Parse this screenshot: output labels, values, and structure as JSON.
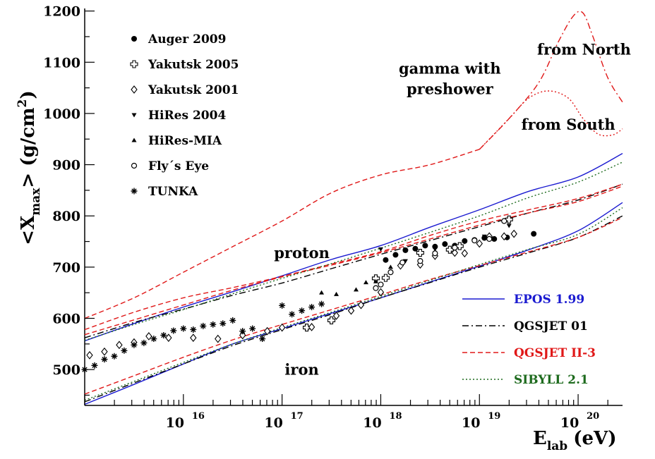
{
  "chart_data": {
    "type": "line",
    "title": "",
    "xlabel": {
      "main": "E",
      "sub": "lab",
      "unit": "(eV)"
    },
    "ylabel": {
      "open": "<X",
      "sub": "max",
      "mid": "> (g/cm",
      "sup": "2",
      "close": ")"
    },
    "xscale": "log10",
    "xlim": [
      15.0,
      20.45
    ],
    "ylim": [
      430,
      1205
    ],
    "yticks": [
      500,
      600,
      700,
      800,
      900,
      1000,
      1100,
      1200
    ],
    "xticks": [
      {
        "pos": 16,
        "base": "10",
        "exp": "16"
      },
      {
        "pos": 17,
        "base": "10",
        "exp": "17"
      },
      {
        "pos": 18,
        "base": "10",
        "exp": "18"
      },
      {
        "pos": 19,
        "base": "10",
        "exp": "19"
      },
      {
        "pos": 20,
        "base": "10",
        "exp": "20"
      }
    ],
    "legend_data": {
      "position": "top-left",
      "entries": [
        {
          "label": "Auger 2009",
          "marker": "filled-circle"
        },
        {
          "label": "Yakutsk 2005",
          "marker": "open-cross"
        },
        {
          "label": "Yakutsk 2001",
          "marker": "open-diamond"
        },
        {
          "label": "HiRes 2004",
          "marker": "down-triangle"
        },
        {
          "label": "HiRes-MIA",
          "marker": "up-triangle"
        },
        {
          "label": "Fly´s Eye",
          "marker": "open-circle"
        },
        {
          "label": "TUNKA",
          "marker": "star"
        }
      ]
    },
    "legend_models": {
      "position": "bottom-right",
      "entries": [
        {
          "label": "EPOS 1.99",
          "color": "#1a1ad0",
          "dash": "solid"
        },
        {
          "label": "QGSJET 01",
          "color": "#000000",
          "dash": "dashdot"
        },
        {
          "label": "QGSJET II-3",
          "color": "#e01818",
          "dash": "dashed"
        },
        {
          "label": "SIBYLL 2.1",
          "color": "#1e6b1e",
          "dash": "dotted"
        }
      ]
    },
    "annotations": [
      {
        "text": "gamma with",
        "x": 18.7,
        "y": 1078
      },
      {
        "text": "preshower",
        "x": 18.7,
        "y": 1038
      },
      {
        "text": "from North",
        "x": 20.06,
        "y": 1115
      },
      {
        "text": "from South",
        "x": 19.9,
        "y": 968
      },
      {
        "text": "proton",
        "x": 17.2,
        "y": 718
      },
      {
        "text": "iron",
        "x": 17.2,
        "y": 490
      }
    ],
    "series": [
      {
        "name": "EPOS proton",
        "model": "EPOS 1.99",
        "color": "#1a1ad0",
        "dash": "solid",
        "x": [
          15.0,
          15.5,
          16.0,
          16.5,
          17.0,
          17.5,
          18.0,
          18.5,
          19.0,
          19.5,
          20.0,
          20.45
        ],
        "y": [
          556,
          590,
          622,
          652,
          683,
          715,
          742,
          778,
          812,
          848,
          876,
          922
        ]
      },
      {
        "name": "EPOS iron",
        "model": "EPOS 1.99",
        "color": "#1a1ad0",
        "dash": "solid",
        "x": [
          15.0,
          15.5,
          16.0,
          16.5,
          17.0,
          17.5,
          18.0,
          18.5,
          19.0,
          19.5,
          20.0,
          20.45
        ],
        "y": [
          432,
          471,
          511,
          550,
          580,
          610,
          640,
          671,
          702,
          734,
          771,
          826
        ]
      },
      {
        "name": "QGSJET 01 proton",
        "model": "QGSJET 01",
        "color": "#000000",
        "dash": "dashdot",
        "x": [
          15.0,
          15.5,
          16.0,
          16.5,
          17.0,
          17.5,
          18.0,
          18.5,
          19.0,
          19.5,
          20.0,
          20.45
        ],
        "y": [
          562,
          592,
          618,
          645,
          669,
          697,
          725,
          752,
          779,
          806,
          831,
          862
        ]
      },
      {
        "name": "QGSJET 01 iron",
        "model": "QGSJET 01",
        "color": "#000000",
        "dash": "dashdot",
        "x": [
          15.0,
          15.5,
          16.0,
          16.5,
          17.0,
          17.5,
          18.0,
          18.5,
          19.0,
          19.5,
          20.0,
          20.45
        ],
        "y": [
          437,
          474,
          511,
          547,
          578,
          608,
          640,
          670,
          700,
          728,
          758,
          800
        ]
      },
      {
        "name": "QGSJET II-3 proton",
        "model": "QGSJET II-3",
        "color": "#e01818",
        "dash": "dashed",
        "x": [
          15.0,
          15.5,
          16.0,
          16.5,
          17.0,
          17.5,
          18.0,
          18.5,
          19.0,
          19.5,
          20.0,
          20.45
        ],
        "y": [
          578,
          612,
          640,
          660,
          682,
          706,
          730,
          762,
          790,
          812,
          834,
          862
        ]
      },
      {
        "name": "QGSJET II-3 lower",
        "model": "QGSJET II-3",
        "color": "#e01818",
        "dash": "dashed",
        "x": [
          15.0,
          15.5,
          16.0,
          16.5,
          17.0,
          17.5,
          18.0,
          18.5,
          19.0,
          19.5,
          20.0,
          20.45
        ],
        "y": [
          568,
          597,
          626,
          655,
          681,
          704,
          728,
          755,
          782,
          806,
          828,
          858
        ]
      },
      {
        "name": "QGSJET II-3 iron",
        "model": "QGSJET II-3",
        "color": "#e01818",
        "dash": "dashed",
        "x": [
          15.0,
          15.5,
          16.0,
          16.5,
          17.0,
          17.5,
          18.0,
          18.5,
          19.0,
          19.5,
          20.0,
          20.45
        ],
        "y": [
          452,
          488,
          524,
          558,
          588,
          617,
          646,
          676,
          703,
          730,
          758,
          797
        ]
      },
      {
        "name": "SIBYLL proton",
        "model": "SIBYLL 2.1",
        "color": "#1e6b1e",
        "dash": "dotted",
        "x": [
          15.0,
          15.5,
          16.0,
          16.5,
          17.0,
          17.5,
          18.0,
          18.5,
          19.0,
          19.5,
          20.0,
          20.45
        ],
        "y": [
          557,
          588,
          617,
          648,
          678,
          707,
          737,
          768,
          800,
          836,
          866,
          905
        ]
      },
      {
        "name": "SIBYLL iron",
        "model": "SIBYLL 2.1",
        "color": "#1e6b1e",
        "dash": "dotted",
        "x": [
          15.0,
          15.5,
          16.0,
          16.5,
          17.0,
          17.5,
          18.0,
          18.5,
          19.0,
          19.5,
          20.0,
          20.45
        ],
        "y": [
          440,
          477,
          514,
          550,
          582,
          612,
          643,
          674,
          705,
          735,
          764,
          816
        ]
      },
      {
        "name": "gamma from North",
        "color": "#e01818",
        "dash": "dashdot",
        "x": [
          19.0,
          19.3,
          19.6,
          19.8,
          19.95,
          20.05,
          20.15,
          20.3,
          20.45
        ],
        "y": [
          930,
          990,
          1060,
          1140,
          1190,
          1196,
          1150,
          1070,
          1022
        ]
      },
      {
        "name": "gamma from South",
        "color": "#e01818",
        "dash": "dotted",
        "x": [
          19.0,
          19.3,
          19.5,
          19.7,
          19.9,
          20.05,
          20.2,
          20.35,
          20.45
        ],
        "y": [
          930,
          990,
          1030,
          1044,
          1030,
          990,
          960,
          958,
          970
        ]
      },
      {
        "name": "gamma with preshower",
        "color": "#e01818",
        "dash": "dashed",
        "x": [
          15.0,
          15.5,
          16.0,
          16.5,
          17.0,
          17.5,
          18.0,
          18.5,
          19.0
        ],
        "y": [
          600,
          640,
          690,
          740,
          790,
          845,
          880,
          900,
          930
        ]
      }
    ],
    "data_sets": [
      {
        "name": "Auger 2009",
        "marker": "filled-circle",
        "points": [
          [
            18.05,
            714
          ],
          [
            18.15,
            724
          ],
          [
            18.25,
            733
          ],
          [
            18.35,
            736
          ],
          [
            18.45,
            742
          ],
          [
            18.55,
            740
          ],
          [
            18.65,
            745
          ],
          [
            18.75,
            742
          ],
          [
            18.85,
            751
          ],
          [
            18.95,
            753
          ],
          [
            19.05,
            757
          ],
          [
            19.15,
            755
          ],
          [
            19.28,
            758
          ],
          [
            19.55,
            765
          ]
        ]
      },
      {
        "name": "Yakutsk 2005",
        "marker": "open-cross",
        "points": [
          [
            17.25,
            582
          ],
          [
            17.5,
            596
          ],
          [
            17.95,
            678
          ],
          [
            18.05,
            679
          ],
          [
            18.4,
            728
          ],
          [
            18.7,
            734
          ],
          [
            18.8,
            741
          ],
          [
            19.3,
            793
          ]
        ]
      },
      {
        "name": "Yakutsk 2001",
        "marker": "open-diamond",
        "points": [
          [
            15.05,
            528
          ],
          [
            15.2,
            535
          ],
          [
            15.35,
            548
          ],
          [
            15.5,
            553
          ],
          [
            15.65,
            565
          ],
          [
            15.85,
            562
          ],
          [
            16.1,
            562
          ],
          [
            16.35,
            560
          ],
          [
            16.6,
            567
          ],
          [
            16.85,
            575
          ],
          [
            17.0,
            582
          ],
          [
            17.3,
            583
          ],
          [
            17.55,
            605
          ],
          [
            17.7,
            615
          ],
          [
            17.8,
            626
          ],
          [
            18.0,
            651
          ],
          [
            18.2,
            703
          ],
          [
            18.4,
            705
          ],
          [
            18.55,
            722
          ],
          [
            18.75,
            728
          ],
          [
            18.85,
            727
          ],
          [
            19.0,
            746
          ],
          [
            19.1,
            760
          ],
          [
            19.25,
            760
          ],
          [
            19.35,
            765
          ]
        ]
      },
      {
        "name": "HiRes 2004",
        "marker": "down-triangle",
        "points": [
          [
            18.0,
            735
          ],
          [
            18.25,
            712
          ],
          [
            18.55,
            735
          ],
          [
            18.85,
            749
          ],
          [
            19.05,
            760
          ],
          [
            19.3,
            781
          ]
        ]
      },
      {
        "name": "HiRes-MIA",
        "marker": "up-triangle",
        "points": [
          [
            17.4,
            650
          ],
          [
            17.55,
            647
          ],
          [
            17.75,
            656
          ],
          [
            17.85,
            670
          ],
          [
            17.95,
            672
          ],
          [
            18.1,
            700
          ]
        ]
      },
      {
        "name": "Fly´s Eye",
        "marker": "open-circle",
        "points": [
          [
            17.95,
            659
          ],
          [
            18.0,
            666
          ],
          [
            18.1,
            690
          ],
          [
            18.22,
            709
          ],
          [
            18.4,
            712
          ],
          [
            18.55,
            727
          ],
          [
            18.75,
            738
          ],
          [
            18.95,
            752
          ],
          [
            19.1,
            755
          ],
          [
            19.25,
            790
          ]
        ]
      },
      {
        "name": "TUNKA",
        "marker": "star",
        "points": [
          [
            15.0,
            500
          ],
          [
            15.1,
            508
          ],
          [
            15.2,
            520
          ],
          [
            15.3,
            526
          ],
          [
            15.4,
            537
          ],
          [
            15.5,
            548
          ],
          [
            15.6,
            552
          ],
          [
            15.7,
            560
          ],
          [
            15.8,
            567
          ],
          [
            15.9,
            576
          ],
          [
            16.0,
            580
          ],
          [
            16.1,
            578
          ],
          [
            16.2,
            585
          ],
          [
            16.3,
            588
          ],
          [
            16.4,
            590
          ],
          [
            16.5,
            596
          ],
          [
            16.6,
            575
          ],
          [
            16.7,
            580
          ],
          [
            16.8,
            560
          ],
          [
            17.0,
            625
          ],
          [
            17.1,
            608
          ],
          [
            17.2,
            615
          ],
          [
            17.3,
            622
          ],
          [
            17.4,
            628
          ]
        ]
      }
    ]
  }
}
